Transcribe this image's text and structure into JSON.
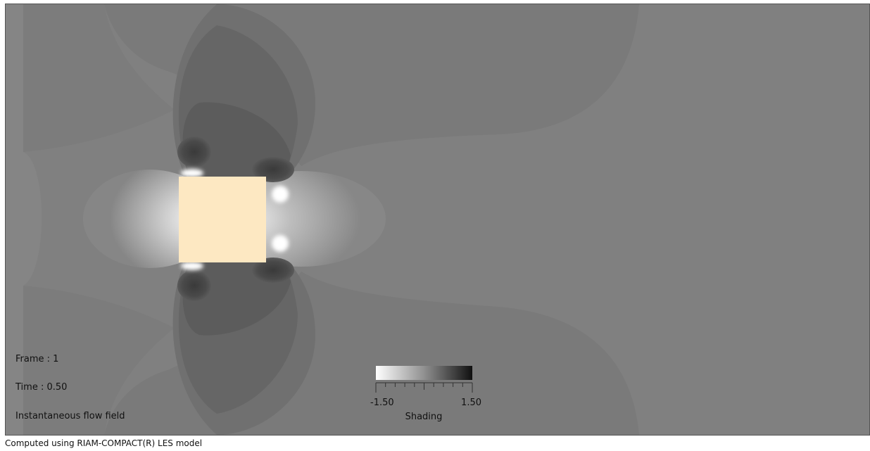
{
  "info": {
    "frame_label": "Frame : 1",
    "time_label": "Time : 0.50",
    "description": "Instantaneous flow field"
  },
  "colorbar": {
    "min_label": "-1.50",
    "max_label": "1.50",
    "title": "Shading",
    "min": -1.5,
    "max": 1.5,
    "low_color": "#ffffff",
    "high_color": "#101010"
  },
  "footer": {
    "credit": "Computed using RIAM-COMPACT(R) LES model"
  },
  "colors": {
    "background_field": "#808080",
    "obstacle": "#fde8c2"
  }
}
